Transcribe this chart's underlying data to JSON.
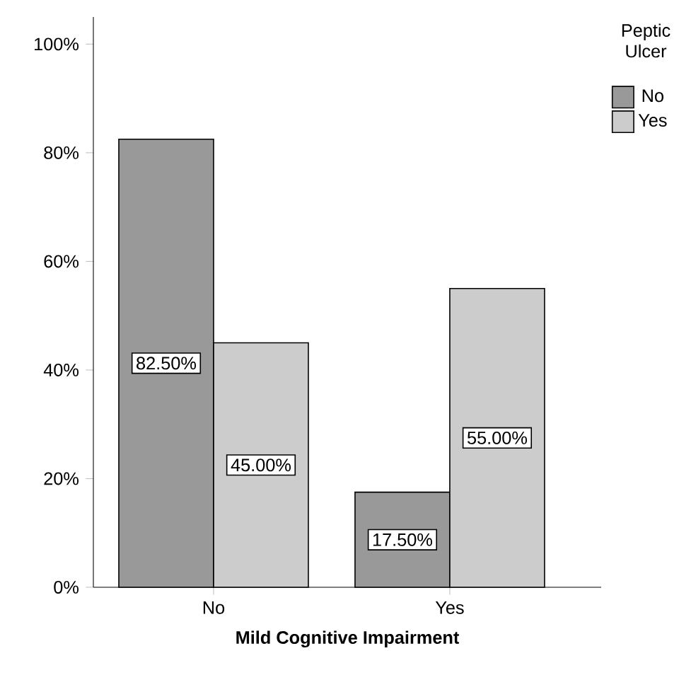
{
  "chart_data": {
    "type": "bar",
    "xlabel": "Mild Cognitive Impairment",
    "legend_title": "Peptic Ulcer",
    "categories": [
      "No",
      "Yes"
    ],
    "series": [
      {
        "name": "No",
        "color": "#999999",
        "values": [
          82.5,
          17.5
        ],
        "value_labels": [
          "82.50%",
          "17.50%"
        ]
      },
      {
        "name": "Yes",
        "color": "#cccccc",
        "values": [
          45.0,
          55.0
        ],
        "value_labels": [
          "45.00%",
          "55.00%"
        ]
      }
    ],
    "ylim": [
      0,
      105
    ],
    "yticks": [
      {
        "value": 0,
        "label": "0%"
      },
      {
        "value": 20,
        "label": "20%"
      },
      {
        "value": 40,
        "label": "40%"
      },
      {
        "value": 60,
        "label": "60%"
      },
      {
        "value": 80,
        "label": "80%"
      },
      {
        "value": 100,
        "label": "100%"
      }
    ],
    "grid": false,
    "legend": "top right"
  }
}
